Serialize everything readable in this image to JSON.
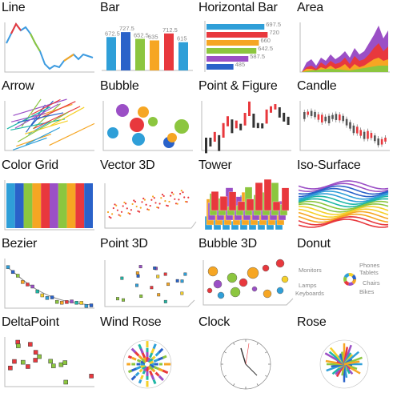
{
  "gallery": {
    "tiles": [
      {
        "id": "line",
        "title": "Line"
      },
      {
        "id": "bar",
        "title": "Bar"
      },
      {
        "id": "hbar",
        "title": "Horizontal Bar"
      },
      {
        "id": "area",
        "title": "Area"
      },
      {
        "id": "arrow",
        "title": "Arrow"
      },
      {
        "id": "bubble",
        "title": "Bubble"
      },
      {
        "id": "pnf",
        "title": "Point & Figure"
      },
      {
        "id": "candle",
        "title": "Candle"
      },
      {
        "id": "colorgrid",
        "title": "Color Grid"
      },
      {
        "id": "vector3d",
        "title": "Vector 3D"
      },
      {
        "id": "tower",
        "title": "Tower"
      },
      {
        "id": "isosurface",
        "title": "Iso-Surface"
      },
      {
        "id": "bezier",
        "title": "Bezier"
      },
      {
        "id": "point3d",
        "title": "Point 3D"
      },
      {
        "id": "bubble3d",
        "title": "Bubble 3D"
      },
      {
        "id": "donut",
        "title": "Donut"
      },
      {
        "id": "deltapoint",
        "title": "DeltaPoint"
      },
      {
        "id": "windrose",
        "title": "Wind Rose"
      },
      {
        "id": "clock",
        "title": "Clock"
      },
      {
        "id": "rose",
        "title": "Rose"
      }
    ]
  },
  "palette": [
    "#2f9fd8",
    "#2a62c9",
    "#8cc63f",
    "#f6a623",
    "#e8383d",
    "#9b4fc6",
    "#1fb7a6",
    "#f5d02a"
  ],
  "bar_chart": {
    "values": [
      672.5,
      727.5,
      652.5,
      635,
      712.5,
      615
    ],
    "labels": [
      "672.5",
      "727.5",
      "652.5",
      "635",
      "712.5",
      "615"
    ],
    "colors": [
      "#2f9fd8",
      "#2a62c9",
      "#8cc63f",
      "#f6a623",
      "#e8383d",
      "#2f9fd8"
    ]
  },
  "hbar_chart": {
    "values": [
      697.5,
      720,
      660,
      642.5,
      587.5,
      485
    ],
    "labels": [
      "697.5",
      "720",
      "660",
      "642.5",
      "587.5",
      "485"
    ],
    "colors": [
      "#2f9fd8",
      "#e8383d",
      "#f6a623",
      "#8cc63f",
      "#9b4fc6",
      "#2a62c9"
    ]
  },
  "donut_chart": {
    "labels": [
      "Monitors",
      "Phones",
      "Tablets",
      "Chairs",
      "Lamps",
      "Keyboards",
      "Bikes"
    ],
    "colors": [
      "#f6a623",
      "#9b4fc6",
      "#e8383d",
      "#8cc63f",
      "#2f9fd8",
      "#f5d02a",
      "#2a62c9"
    ]
  }
}
